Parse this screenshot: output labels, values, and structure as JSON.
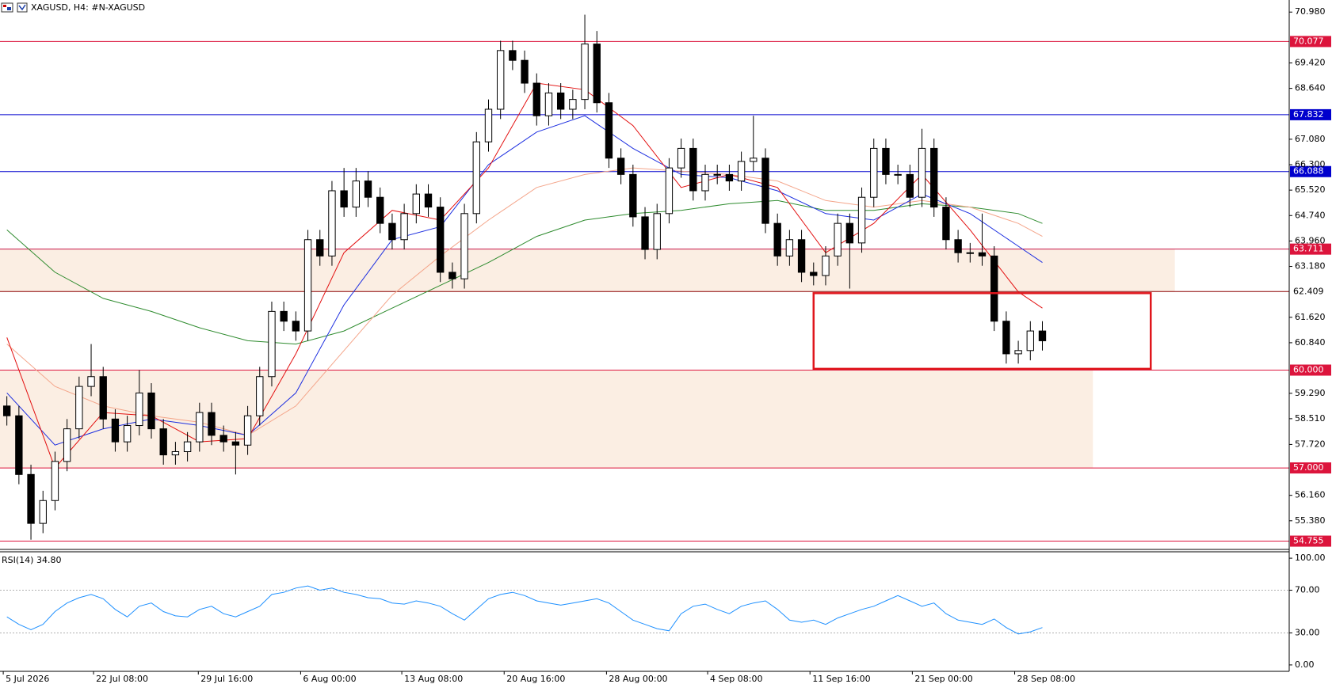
{
  "chart_data": {
    "type": "candlestick",
    "title": "XAGUSD, H4:  #N-XAGUSD",
    "xlim": [
      -0.57,
      106.5
    ],
    "xticks": [
      {
        "value": -0.3,
        "label": "5 Jul 2026"
      },
      {
        "value": 7.2,
        "label": "22 Jul 08:00"
      },
      {
        "value": 15.9,
        "label": "29 Jul 16:00"
      },
      {
        "value": 24.4,
        "label": "6 Aug 00:00"
      },
      {
        "value": 32.8,
        "label": "13 Aug 08:00"
      },
      {
        "value": 41.3,
        "label": "20 Aug 16:00"
      },
      {
        "value": 49.8,
        "label": "28 Aug 00:00"
      },
      {
        "value": 58.2,
        "label": "4 Sep 08:00"
      },
      {
        "value": 66.7,
        "label": "11 Sep 16:00"
      },
      {
        "value": 75.2,
        "label": "21 Sep 00:00"
      },
      {
        "value": 83.7,
        "label": "28 Sep 08:00"
      }
    ],
    "ylim": [
      54.55,
      71.35
    ],
    "yticks": [
      {
        "value": 70.98,
        "label": "70.980"
      },
      {
        "value": 69.42,
        "label": "69.420"
      },
      {
        "value": 68.64,
        "label": "68.640"
      },
      {
        "value": 67.08,
        "label": "67.080"
      },
      {
        "value": 66.3,
        "label": "66.300"
      },
      {
        "value": 65.52,
        "label": "65.520"
      },
      {
        "value": 64.74,
        "label": "64.740"
      },
      {
        "value": 63.96,
        "label": "63.960"
      },
      {
        "value": 63.18,
        "label": "63.180"
      },
      {
        "value": 61.62,
        "label": "61.620"
      },
      {
        "value": 60.84,
        "label": "60.840"
      },
      {
        "value": 59.29,
        "label": "59.290"
      },
      {
        "value": 58.51,
        "label": "58.510"
      },
      {
        "value": 57.72,
        "label": "57.720"
      },
      {
        "value": 56.16,
        "label": "56.160"
      },
      {
        "value": 55.38,
        "label": "55.380"
      }
    ],
    "candles": {
      "up_color": "#ffffff",
      "down_color": "#000000",
      "outline_color": "#000000",
      "open": [
        58.9,
        58.6,
        56.8,
        55.3,
        56.0,
        57.2,
        58.2,
        59.5,
        59.8,
        58.5,
        57.8,
        58.3,
        59.3,
        58.2,
        57.4,
        57.5,
        57.8,
        58.7,
        58.0,
        57.8,
        57.7,
        58.6,
        59.8,
        61.8,
        61.5,
        61.2,
        64.0,
        63.5,
        65.5,
        65.0,
        65.8,
        65.3,
        64.5,
        64.0,
        64.8,
        65.4,
        65.0,
        63.0,
        62.8,
        64.8,
        67.0,
        68.0,
        69.8,
        69.5,
        68.8,
        67.8,
        68.5,
        68.0,
        68.3,
        70.0,
        68.2,
        66.5,
        66.0,
        64.7,
        63.7,
        64.8,
        66.2,
        66.8,
        65.5,
        66.0,
        66.0,
        65.8,
        66.4,
        66.5,
        64.5,
        63.5,
        64.0,
        63.0,
        62.9,
        63.5,
        64.5,
        63.9,
        65.3,
        66.8,
        66.0,
        66.0,
        65.3,
        66.8,
        65.0,
        64.0,
        63.6,
        63.6,
        63.5,
        61.5,
        60.5,
        60.6,
        61.2
      ],
      "high": [
        59.2,
        58.9,
        57.1,
        56.3,
        57.5,
        58.5,
        59.8,
        60.8,
        60.1,
        58.8,
        58.6,
        60.0,
        59.6,
        58.5,
        57.8,
        58.1,
        59.0,
        59.0,
        58.3,
        58.1,
        58.9,
        60.1,
        62.1,
        62.1,
        61.8,
        64.3,
        64.3,
        65.8,
        66.2,
        66.2,
        66.1,
        65.6,
        64.8,
        65.1,
        65.7,
        65.7,
        65.3,
        63.3,
        65.1,
        67.3,
        68.3,
        70.1,
        70.1,
        69.8,
        69.1,
        68.8,
        68.8,
        68.6,
        70.9,
        70.4,
        68.5,
        66.8,
        66.3,
        65.0,
        65.1,
        66.5,
        67.1,
        67.1,
        66.3,
        66.3,
        66.3,
        66.7,
        67.8,
        66.8,
        64.8,
        64.3,
        64.3,
        63.3,
        63.8,
        64.8,
        64.8,
        65.6,
        67.1,
        67.1,
        66.3,
        66.3,
        67.4,
        67.1,
        65.3,
        64.3,
        63.9,
        64.8,
        63.8,
        61.8,
        60.9,
        61.5,
        61.5
      ],
      "low": [
        58.3,
        56.5,
        54.8,
        55.0,
        55.7,
        56.9,
        57.9,
        59.2,
        58.2,
        57.5,
        57.5,
        58.0,
        57.9,
        57.1,
        57.1,
        57.2,
        57.5,
        57.7,
        57.5,
        56.8,
        57.4,
        58.3,
        59.5,
        61.2,
        60.9,
        60.9,
        63.2,
        63.2,
        64.7,
        64.7,
        65.0,
        64.2,
        63.7,
        63.7,
        64.5,
        64.7,
        62.7,
        62.5,
        62.5,
        64.5,
        66.7,
        67.7,
        69.2,
        68.5,
        67.5,
        67.5,
        67.7,
        67.7,
        68.0,
        67.9,
        66.2,
        65.7,
        64.4,
        63.4,
        63.4,
        64.5,
        65.9,
        65.2,
        65.2,
        65.7,
        65.5,
        65.5,
        66.1,
        64.2,
        63.2,
        63.2,
        62.7,
        62.6,
        62.6,
        63.2,
        62.5,
        63.6,
        65.0,
        65.7,
        65.7,
        65.0,
        65.0,
        64.7,
        63.7,
        63.3,
        63.3,
        63.2,
        61.2,
        60.2,
        60.2,
        60.3,
        60.6
      ],
      "close": [
        58.6,
        56.8,
        55.3,
        56.0,
        57.2,
        58.2,
        59.5,
        59.8,
        58.5,
        57.8,
        58.3,
        59.3,
        58.2,
        57.4,
        57.5,
        57.8,
        58.7,
        58.0,
        57.8,
        57.7,
        58.6,
        59.8,
        61.8,
        61.5,
        61.2,
        64.0,
        63.5,
        65.5,
        65.0,
        65.8,
        65.3,
        64.5,
        64.0,
        64.8,
        65.4,
        65.0,
        63.0,
        62.8,
        64.8,
        67.0,
        68.0,
        69.8,
        69.5,
        68.8,
        67.8,
        68.5,
        68.0,
        68.3,
        70.0,
        68.2,
        66.5,
        66.0,
        64.7,
        63.7,
        64.8,
        66.2,
        66.8,
        65.5,
        66.0,
        66.0,
        65.8,
        66.4,
        66.5,
        64.5,
        63.5,
        64.0,
        63.0,
        62.9,
        63.5,
        64.5,
        63.9,
        65.3,
        66.8,
        66.0,
        66.0,
        65.3,
        66.8,
        65.0,
        64.0,
        63.6,
        63.6,
        63.5,
        61.5,
        60.5,
        60.6,
        61.2,
        60.9
      ]
    },
    "moving_averages": {
      "x": [
        0,
        4,
        8,
        12,
        16,
        20,
        24,
        28,
        32,
        36,
        40,
        44,
        48,
        52,
        56,
        60,
        64,
        68,
        72,
        76,
        80,
        84,
        86
      ],
      "series": [
        {
          "color": "#2e8b2e",
          "values": [
            64.3,
            63.0,
            62.2,
            61.8,
            61.3,
            60.9,
            60.8,
            61.2,
            61.9,
            62.6,
            63.3,
            64.1,
            64.6,
            64.8,
            64.9,
            65.1,
            65.2,
            64.9,
            64.9,
            65.1,
            65.0,
            64.8,
            64.5
          ]
        },
        {
          "color": "#f4a58a",
          "values": [
            60.8,
            59.5,
            58.9,
            58.6,
            58.4,
            58.0,
            58.9,
            60.6,
            62.3,
            63.5,
            64.6,
            65.6,
            66.0,
            66.2,
            66.1,
            66.0,
            65.8,
            65.2,
            65.0,
            65.2,
            65.0,
            64.5,
            64.1
          ]
        },
        {
          "color": "#1c2ee0",
          "values": [
            59.3,
            57.7,
            58.2,
            58.5,
            58.3,
            58.0,
            59.3,
            62.0,
            64.0,
            64.4,
            66.3,
            67.3,
            67.8,
            66.8,
            66.0,
            65.9,
            65.5,
            64.8,
            64.6,
            65.4,
            64.8,
            63.8,
            63.3
          ]
        },
        {
          "color": "#e31010",
          "values": [
            61.0,
            57.0,
            58.7,
            58.6,
            57.8,
            57.9,
            60.5,
            63.6,
            64.9,
            64.6,
            66.2,
            68.8,
            68.6,
            67.5,
            65.6,
            66.0,
            65.6,
            63.6,
            64.5,
            66.0,
            64.3,
            62.4,
            61.9
          ]
        }
      ]
    },
    "levels": [
      {
        "value": 70.077,
        "label": "70.077",
        "color": "#dc143c",
        "label_bg": "#dc143c",
        "label_color": "#ffffff"
      },
      {
        "value": 67.832,
        "label": "67.832",
        "color": "#0000cd",
        "label_bg": "#0000cd",
        "label_color": "#ffffff"
      },
      {
        "value": 66.088,
        "label": "66.088",
        "color": "#0000cd",
        "label_bg": "#0000cd",
        "label_color": "#ffffff"
      },
      {
        "value": 63.711,
        "label": "63.711",
        "color": "#c71545",
        "label_bg": "#dc143c",
        "label_color": "#ffffff"
      },
      {
        "value": 62.409,
        "label": "62.409",
        "color": "#8b0000",
        "label_bg": "#ffffff",
        "label_color": "#000000"
      },
      {
        "value": 60.0,
        "label": "60.000",
        "color": "#dc143c",
        "label_bg": "#dc143c",
        "label_color": "#ffffff"
      },
      {
        "value": 57.0,
        "label": "57.000",
        "color": "#dc143c",
        "label_bg": "#dc143c",
        "label_color": "#ffffff"
      },
      {
        "value": 54.755,
        "label": "54.755",
        "color": "#dc143c",
        "label_bg": "#dc143c",
        "label_color": "#ffffff"
      }
    ],
    "zones": [
      {
        "y": [
          63.711,
          62.409
        ],
        "x_end": 97.0,
        "color": "#fbeee3"
      },
      {
        "y": [
          60.0,
          57.0
        ],
        "x_end": 90.2,
        "color": "#fbeee3"
      }
    ],
    "box": {
      "x": [
        67.0,
        95.0
      ],
      "y": [
        62.36,
        60.04
      ],
      "color": "#e0161c"
    },
    "rsi": {
      "label": "RSI(14) 34.80",
      "color": "#1e90ff",
      "ylim": [
        -6,
        106
      ],
      "yticks": [
        {
          "value": 100,
          "label": "100.00"
        },
        {
          "value": 70,
          "label": "70.00"
        },
        {
          "value": 30,
          "label": "30.00"
        },
        {
          "value": 0,
          "label": "0.00"
        }
      ],
      "levels": [
        70,
        30
      ],
      "values": [
        45,
        38,
        33,
        38,
        50,
        58,
        63,
        66,
        62,
        52,
        45,
        55,
        58,
        50,
        46,
        45,
        52,
        55,
        48,
        45,
        50,
        55,
        66,
        68,
        72,
        74,
        70,
        72,
        68,
        66,
        63,
        62,
        58,
        57,
        60,
        58,
        55,
        48,
        42,
        52,
        62,
        66,
        68,
        65,
        60,
        58,
        56,
        58,
        60,
        62,
        58,
        50,
        42,
        38,
        34,
        32,
        48,
        55,
        57,
        52,
        48,
        55,
        58,
        60,
        52,
        42,
        40,
        42,
        38,
        44,
        48,
        52,
        55,
        60,
        65,
        60,
        55,
        58,
        48,
        42,
        40,
        38,
        43,
        35,
        29,
        31,
        35
      ]
    }
  }
}
